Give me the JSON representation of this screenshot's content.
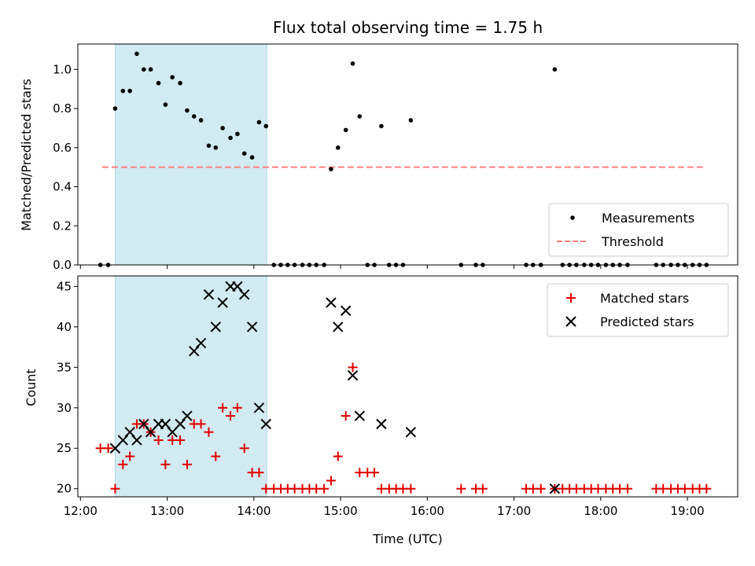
{
  "colors": {
    "measurement": "#000000",
    "threshold": "#ff7f7f",
    "matched": "#e00000",
    "predicted": "#000000",
    "shade": "#add8e6"
  },
  "chart_data": [
    {
      "type": "scatter",
      "title": "Flux total observing time = 1.75 h",
      "xlabel": "",
      "ylabel": "Matched/Predicted stars",
      "x_unit": "hours (UTC)",
      "xlim": [
        11.97,
        19.58
      ],
      "ylim": [
        0,
        1.13
      ],
      "yticks": [
        0.0,
        0.2,
        0.4,
        0.6,
        0.8,
        1.0
      ],
      "ytick_labels": [
        "0.0",
        "0.2",
        "0.4",
        "0.6",
        "0.8",
        "1.0"
      ],
      "shaded_span": [
        12.4,
        14.15
      ],
      "legend": {
        "placement": "lower right",
        "entries": [
          "Measurements",
          "Threshold"
        ]
      },
      "series": [
        {
          "name": "Measurements",
          "x": [
            12.23,
            12.32,
            12.4,
            12.49,
            12.57,
            12.65,
            12.73,
            12.81,
            12.9,
            12.98,
            13.06,
            13.15,
            13.23,
            13.31,
            13.39,
            13.48,
            13.56,
            13.64,
            13.73,
            13.81,
            13.89,
            13.98,
            14.06,
            14.14,
            14.23,
            14.31,
            14.39,
            14.47,
            14.56,
            14.64,
            14.72,
            14.81,
            14.89,
            14.97,
            15.06,
            15.14,
            15.22,
            15.31,
            15.39,
            15.47,
            15.56,
            15.64,
            15.72,
            15.81,
            16.39,
            16.56,
            16.64,
            17.14,
            17.22,
            17.31,
            17.47,
            17.56,
            17.64,
            17.72,
            17.81,
            17.89,
            17.97,
            18.06,
            18.14,
            18.22,
            18.31,
            18.64,
            18.72,
            18.81,
            18.89,
            18.97,
            19.06,
            19.14,
            19.22
          ],
          "y": [
            0.0,
            0.0,
            0.8,
            0.89,
            0.89,
            1.08,
            1.0,
            1.0,
            0.93,
            0.82,
            0.96,
            0.93,
            0.79,
            0.76,
            0.74,
            0.61,
            0.6,
            0.7,
            0.65,
            0.67,
            0.57,
            0.55,
            0.73,
            0.71,
            0.0,
            0.0,
            0.0,
            0.0,
            0.0,
            0.0,
            0.0,
            0.0,
            0.49,
            0.6,
            0.69,
            1.03,
            0.76,
            0.0,
            0.0,
            0.71,
            0.0,
            0.0,
            0.0,
            0.74,
            0.0,
            0.0,
            0.0,
            0.0,
            0.0,
            0.0,
            1.0,
            0.0,
            0.0,
            0.0,
            0.0,
            0.0,
            0.0,
            0.0,
            0.0,
            0.0,
            0.0,
            0.0,
            0.0,
            0.0,
            0.0,
            0.0,
            0.0,
            0.0,
            0.0
          ]
        },
        {
          "name": "Threshold",
          "type": "line",
          "x": [
            12.25,
            19.2
          ],
          "y": [
            0.5,
            0.5
          ]
        }
      ]
    },
    {
      "type": "scatter",
      "title": "",
      "xlabel": "Time (UTC)",
      "ylabel": "Count",
      "x_unit": "hours (UTC)",
      "xlim": [
        11.97,
        19.58
      ],
      "ylim": [
        19.0,
        46.3
      ],
      "xticks": [
        12,
        13,
        14,
        15,
        16,
        17,
        18,
        19
      ],
      "xtick_labels": [
        "12:00",
        "13:00",
        "14:00",
        "15:00",
        "16:00",
        "17:00",
        "18:00",
        "19:00"
      ],
      "yticks": [
        20,
        25,
        30,
        35,
        40,
        45
      ],
      "ytick_labels": [
        "20",
        "25",
        "30",
        "35",
        "40",
        "45"
      ],
      "shaded_span": [
        12.4,
        14.15
      ],
      "legend": {
        "placement": "upper right",
        "entries": [
          "Matched stars",
          "Predicted stars"
        ]
      },
      "series": [
        {
          "name": "Matched stars",
          "marker": "plus",
          "x": [
            12.23,
            12.32,
            12.4,
            12.49,
            12.57,
            12.65,
            12.73,
            12.81,
            12.9,
            12.98,
            13.06,
            13.15,
            13.23,
            13.31,
            13.39,
            13.48,
            13.56,
            13.64,
            13.73,
            13.81,
            13.89,
            13.98,
            14.06,
            14.14,
            14.23,
            14.31,
            14.39,
            14.47,
            14.56,
            14.64,
            14.72,
            14.81,
            14.89,
            14.97,
            15.06,
            15.14,
            15.22,
            15.31,
            15.39,
            15.47,
            15.56,
            15.64,
            15.72,
            15.81,
            16.39,
            16.56,
            16.64,
            17.14,
            17.22,
            17.31,
            17.47,
            17.56,
            17.64,
            17.72,
            17.81,
            17.89,
            17.97,
            18.06,
            18.14,
            18.22,
            18.31,
            18.64,
            18.72,
            18.81,
            18.89,
            18.97,
            19.06,
            19.14,
            19.22
          ],
          "y": [
            25,
            25,
            20,
            23,
            24,
            28,
            28,
            27,
            26,
            23,
            26,
            26,
            23,
            28,
            28,
            27,
            24,
            30,
            29,
            30,
            25,
            22,
            22,
            20,
            20,
            20,
            20,
            20,
            20,
            20,
            20,
            20,
            21,
            24,
            29,
            35,
            22,
            22,
            22,
            20,
            20,
            20,
            20,
            20,
            20,
            20,
            20,
            20,
            20,
            20,
            20,
            20,
            20,
            20,
            20,
            20,
            20,
            20,
            20,
            20,
            20,
            20,
            20,
            20,
            20,
            20,
            20,
            20,
            20
          ]
        },
        {
          "name": "Predicted stars",
          "marker": "x",
          "x": [
            12.4,
            12.49,
            12.57,
            12.65,
            12.73,
            12.81,
            12.9,
            12.98,
            13.06,
            13.15,
            13.23,
            13.31,
            13.39,
            13.48,
            13.56,
            13.64,
            13.73,
            13.81,
            13.89,
            13.98,
            14.06,
            14.14,
            14.89,
            14.97,
            15.06,
            15.14,
            15.22,
            15.47,
            15.81,
            17.47
          ],
          "y": [
            25,
            26,
            27,
            26,
            28,
            27,
            28,
            28,
            27,
            28,
            29,
            37,
            38,
            44,
            40,
            43,
            45,
            45,
            44,
            40,
            30,
            28,
            43,
            40,
            42,
            34,
            29,
            28,
            27,
            20
          ]
        }
      ]
    }
  ]
}
